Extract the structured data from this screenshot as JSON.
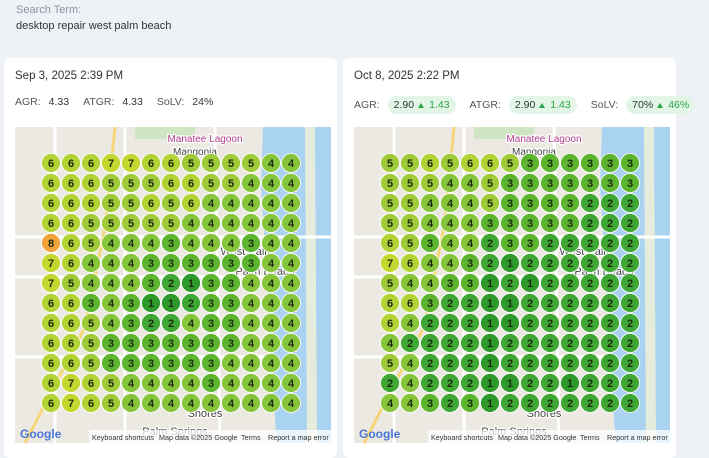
{
  "search": {
    "label": "Search Term:",
    "term": "desktop repair west palm beach"
  },
  "rank_colors": {
    "1": "#2f9a2c",
    "2": "#3fa834",
    "3": "#5db52f",
    "4": "#86c43a",
    "5": "#9fcb38",
    "6": "#b3d234",
    "7": "#c4d72f",
    "8": "#f2a43a"
  },
  "map": {
    "labels": [
      "Manatee Lagoon",
      "Mangonia",
      "West Palm",
      "Palm Beach",
      "Shores",
      "Palm Springs"
    ],
    "attribution": [
      "Google",
      "Keyboard shortcuts",
      "Map data ©2025 Google",
      "Terms",
      "Report a map error"
    ]
  },
  "reports": [
    {
      "date": "Sep 3, 2025 2:39 PM",
      "metrics": [
        {
          "label": "AGR:",
          "value": "4.33"
        },
        {
          "label": "ATGR:",
          "value": "4.33"
        },
        {
          "label": "SoLV:",
          "value": "24%"
        }
      ],
      "grid": [
        [
          6,
          6,
          6,
          7,
          7,
          6,
          6,
          5,
          5,
          5,
          5,
          4,
          4
        ],
        [
          6,
          6,
          6,
          5,
          5,
          5,
          6,
          6,
          5,
          5,
          4,
          4,
          4
        ],
        [
          6,
          6,
          6,
          5,
          5,
          6,
          5,
          6,
          4,
          4,
          4,
          4,
          4
        ],
        [
          6,
          6,
          5,
          5,
          5,
          5,
          5,
          4,
          4,
          4,
          4,
          4,
          4
        ],
        [
          8,
          6,
          5,
          4,
          4,
          4,
          3,
          4,
          4,
          4,
          3,
          4,
          4
        ],
        [
          7,
          6,
          4,
          4,
          4,
          3,
          3,
          3,
          3,
          3,
          3,
          4,
          4
        ],
        [
          7,
          5,
          4,
          4,
          4,
          3,
          2,
          1,
          3,
          3,
          4,
          4,
          4
        ],
        [
          6,
          6,
          3,
          4,
          3,
          1,
          1,
          2,
          3,
          3,
          4,
          4,
          4
        ],
        [
          6,
          6,
          5,
          4,
          3,
          2,
          2,
          4,
          3,
          3,
          4,
          4,
          4
        ],
        [
          6,
          6,
          5,
          3,
          3,
          3,
          3,
          3,
          3,
          3,
          4,
          4,
          4
        ],
        [
          6,
          6,
          5,
          3,
          3,
          3,
          3,
          3,
          3,
          4,
          4,
          4,
          4
        ],
        [
          6,
          7,
          6,
          5,
          4,
          4,
          4,
          4,
          3,
          4,
          4,
          4,
          4
        ],
        [
          6,
          7,
          6,
          5,
          4,
          4,
          4,
          4,
          4,
          4,
          4,
          4,
          4
        ]
      ]
    },
    {
      "date": "Oct 8, 2025 2:22 PM",
      "metrics": [
        {
          "label": "AGR:",
          "value": "2.90",
          "change": "1.43"
        },
        {
          "label": "ATGR:",
          "value": "2.90",
          "change": "1.43"
        },
        {
          "label": "SoLV:",
          "value": "70%",
          "change": "46%"
        }
      ],
      "grid": [
        [
          5,
          5,
          6,
          5,
          6,
          6,
          5,
          3,
          3,
          3,
          3,
          3,
          3
        ],
        [
          5,
          5,
          5,
          4,
          4,
          5,
          3,
          3,
          3,
          3,
          3,
          3,
          3
        ],
        [
          5,
          5,
          4,
          4,
          4,
          5,
          3,
          3,
          3,
          3,
          2,
          2,
          2
        ],
        [
          5,
          5,
          4,
          4,
          4,
          3,
          3,
          3,
          3,
          3,
          2,
          2,
          2
        ],
        [
          6,
          5,
          3,
          4,
          4,
          2,
          3,
          3,
          2,
          2,
          2,
          2,
          2
        ],
        [
          7,
          6,
          4,
          4,
          3,
          2,
          1,
          2,
          2,
          2,
          2,
          2,
          2
        ],
        [
          5,
          4,
          4,
          3,
          3,
          1,
          2,
          1,
          2,
          2,
          2,
          2,
          2
        ],
        [
          6,
          6,
          3,
          2,
          2,
          1,
          1,
          2,
          2,
          2,
          2,
          2,
          2
        ],
        [
          6,
          4,
          2,
          2,
          2,
          1,
          1,
          2,
          2,
          2,
          2,
          2,
          2
        ],
        [
          4,
          2,
          2,
          2,
          2,
          1,
          2,
          2,
          2,
          2,
          2,
          2,
          2
        ],
        [
          5,
          4,
          2,
          2,
          2,
          1,
          2,
          2,
          2,
          2,
          2,
          2,
          2
        ],
        [
          2,
          4,
          2,
          2,
          2,
          1,
          1,
          2,
          2,
          1,
          2,
          2,
          2
        ],
        [
          4,
          4,
          3,
          2,
          3,
          1,
          2,
          2,
          2,
          2,
          2,
          2,
          2
        ]
      ]
    }
  ]
}
